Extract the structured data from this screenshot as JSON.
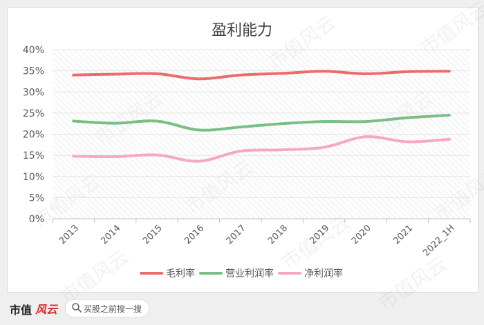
{
  "chart_data": {
    "type": "line",
    "title": "盈利能力",
    "categories": [
      "2013",
      "2014",
      "2015",
      "2016",
      "2017",
      "2018",
      "2019",
      "2020",
      "2021",
      "2022_1H"
    ],
    "y_ticks": [
      "0%",
      "5%",
      "10%",
      "15%",
      "20%",
      "25%",
      "30%",
      "35%",
      "40%"
    ],
    "ylim": [
      0,
      40
    ],
    "grid": true,
    "legend_position": "bottom",
    "series": [
      {
        "name": "毛利率",
        "color": "#ec6b6b",
        "values": [
          34.0,
          34.2,
          34.3,
          33.1,
          34.0,
          34.4,
          34.9,
          34.3,
          34.8,
          34.9
        ]
      },
      {
        "name": "营业利润率",
        "color": "#79bf85",
        "values": [
          23.1,
          22.6,
          23.1,
          21.0,
          21.7,
          22.5,
          23.0,
          23.0,
          23.9,
          24.5
        ]
      },
      {
        "name": "净利润率",
        "color": "#f7a7c6",
        "values": [
          14.8,
          14.7,
          15.1,
          13.6,
          16.0,
          16.3,
          16.9,
          19.4,
          18.2,
          18.8
        ]
      }
    ]
  },
  "watermark": "市值风云",
  "footer": {
    "brand": "市值",
    "brand_script": "风云",
    "search_icon": "search-icon",
    "search_text": "买股之前搜一搜"
  }
}
